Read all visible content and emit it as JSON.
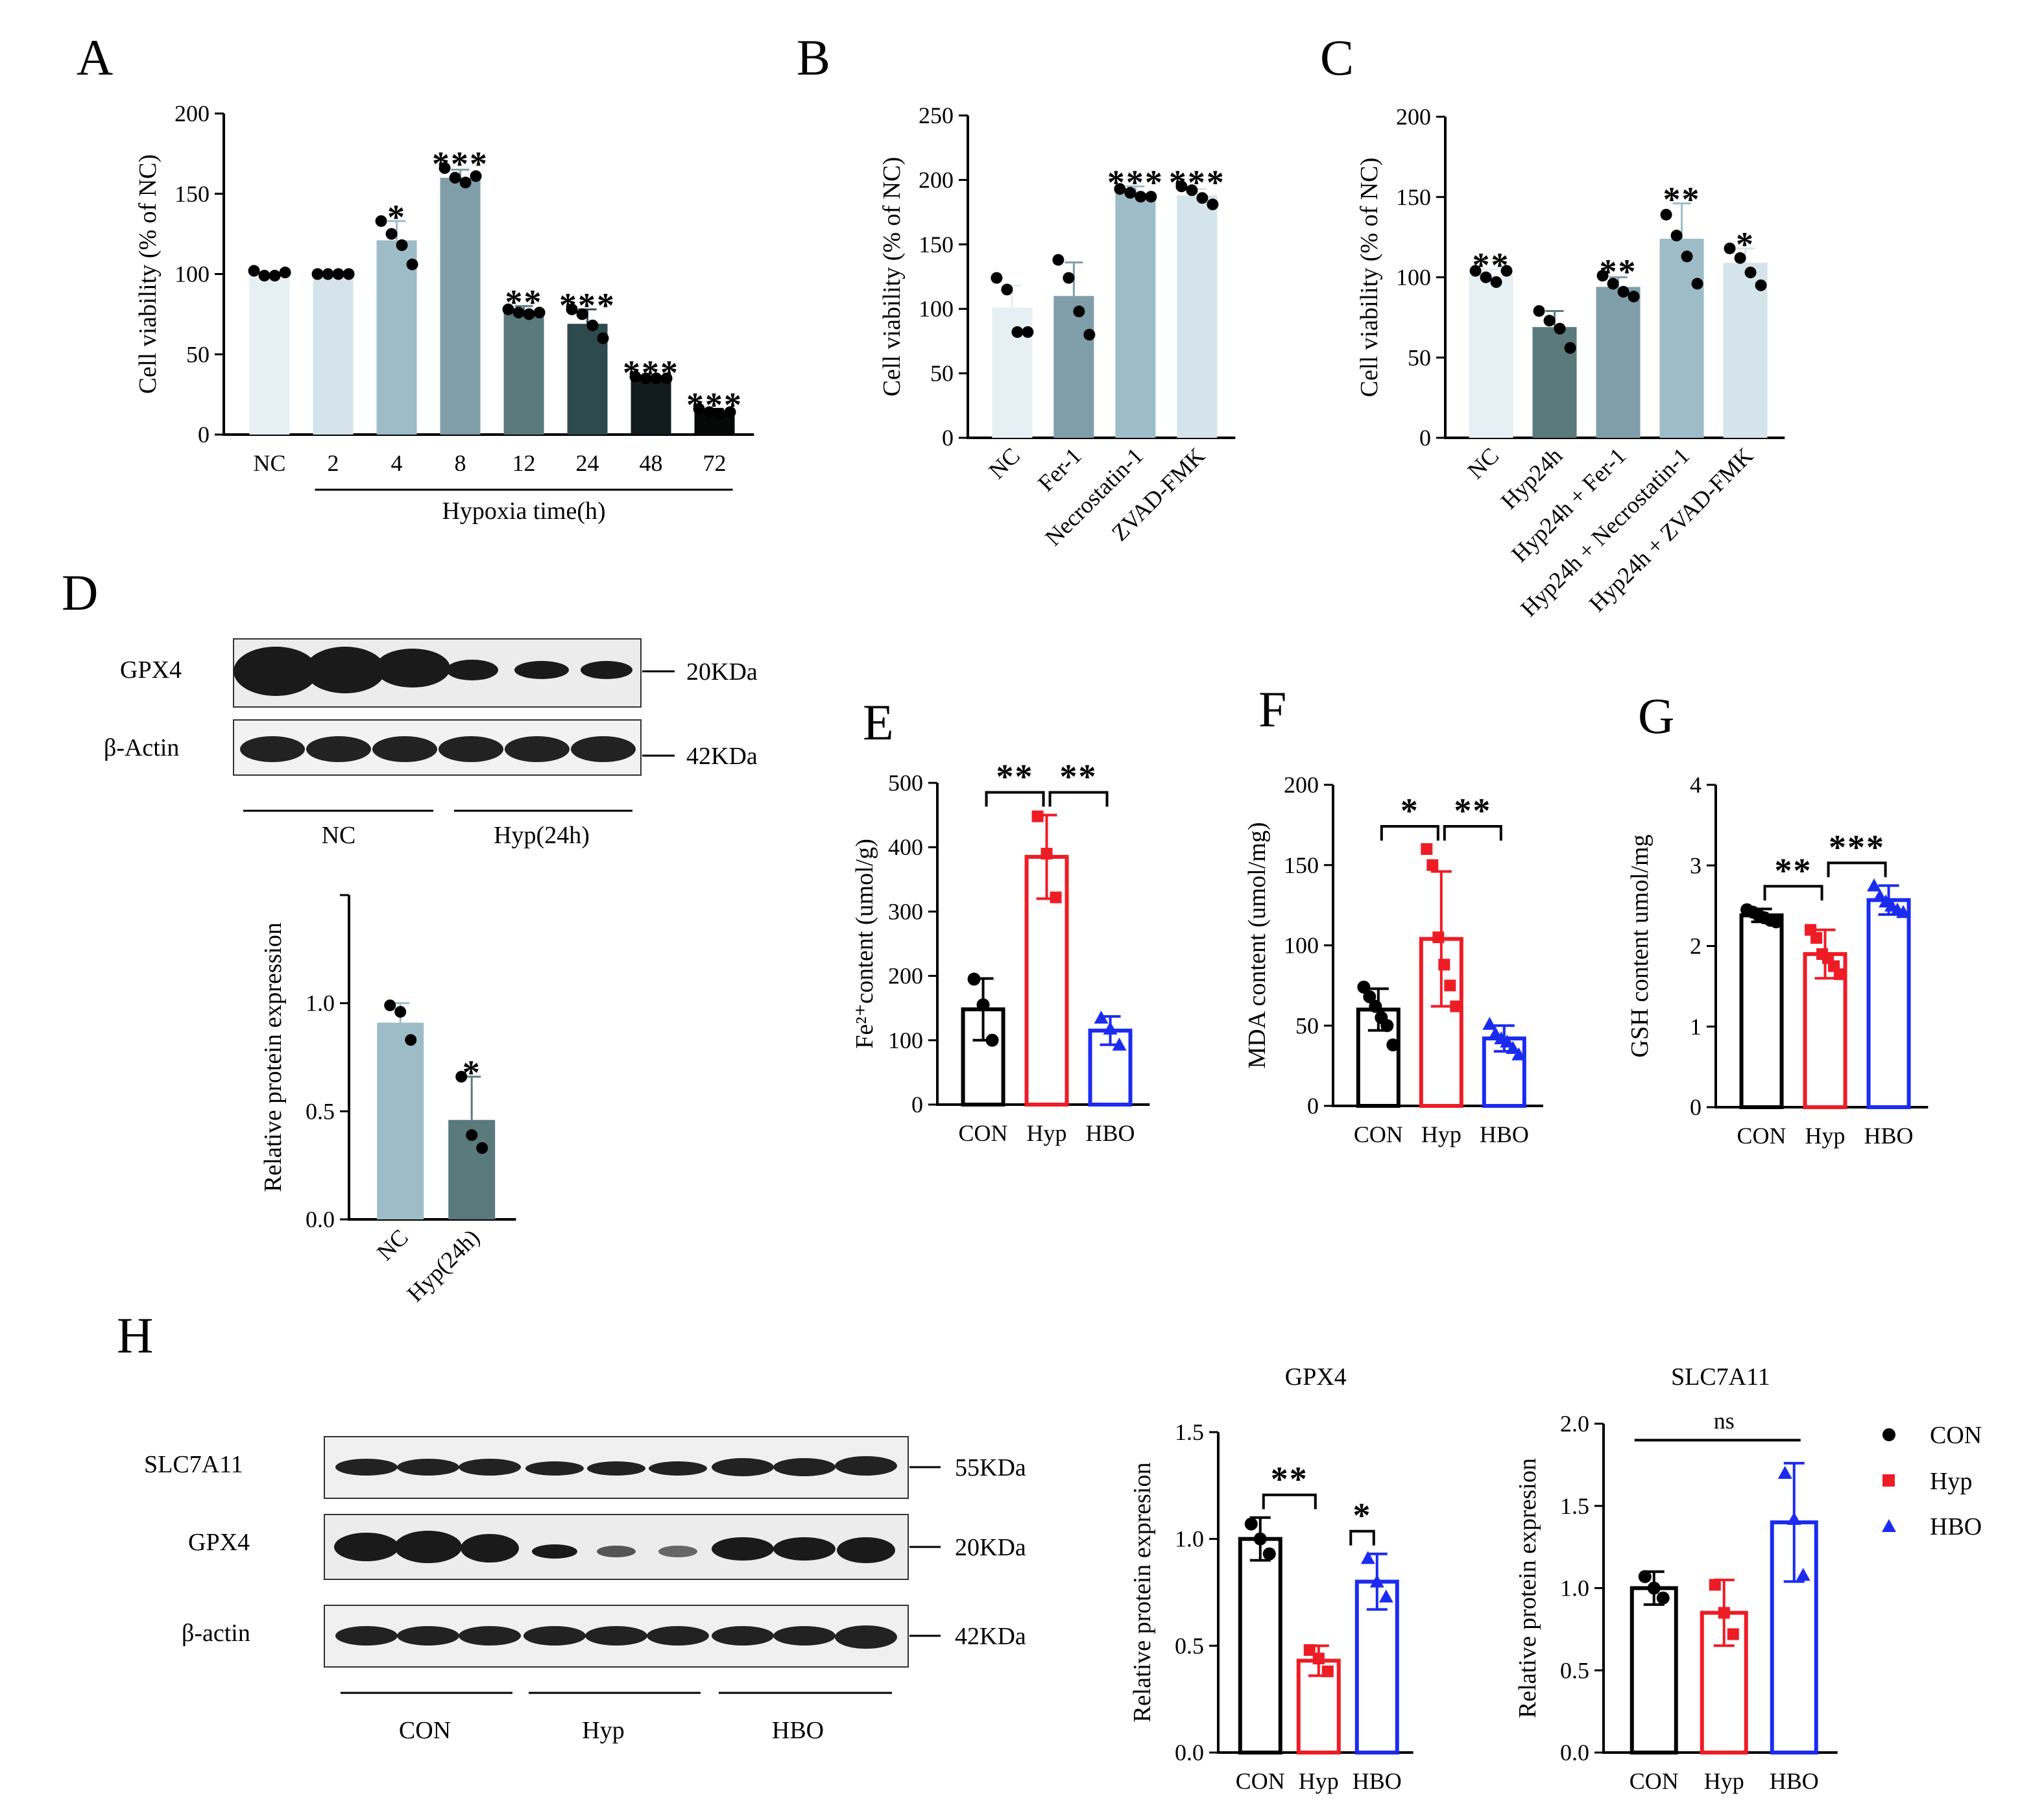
{
  "colors": {
    "NC_A": "#E6EFF4",
    "t2": "#D5E3EA",
    "t4": "#9DBCC8",
    "t8": "#7F9EA9",
    "t12": "#5A7A7C",
    "t24": "#2F4A4C",
    "t48": "#121C1E",
    "t72": "#060808",
    "CON": "#000000",
    "Hyp": "#EE1C25",
    "HBO": "#1C2BF0"
  },
  "panels": {
    "A": {
      "letter": "A"
    },
    "B": {
      "letter": "B"
    },
    "C": {
      "letter": "C"
    },
    "D": {
      "letter": "D"
    },
    "E": {
      "letter": "E"
    },
    "F": {
      "letter": "F"
    },
    "G": {
      "letter": "G"
    },
    "H": {
      "letter": "H"
    }
  },
  "blots": {
    "D": {
      "rows": [
        {
          "name": "GPX4",
          "size": "20KDa"
        },
        {
          "name": "β-Actin",
          "size": "42KDa"
        }
      ],
      "groups": [
        "NC",
        "Hyp(24h)"
      ]
    },
    "H": {
      "rows": [
        {
          "name": "SLC7A11",
          "size": "55KDa"
        },
        {
          "name": "GPX4",
          "size": "20KDa"
        },
        {
          "name": "β-actin",
          "size": "42KDa"
        }
      ],
      "groups": [
        "CON",
        "Hyp",
        "HBO"
      ]
    }
  },
  "legend": [
    {
      "label": "CON",
      "marker": "circle",
      "color": "#000000"
    },
    {
      "label": "Hyp",
      "marker": "square",
      "color": "#EE1C25"
    },
    {
      "label": "HBO",
      "marker": "triangle",
      "color": "#1C2BF0"
    }
  ],
  "chart_data": [
    {
      "id": "A",
      "type": "bar",
      "title": "",
      "ylabel": "Cell viability (% of NC)",
      "xlabel": "Hypoxia time(h)",
      "ylim": [
        0,
        200
      ],
      "yticks": [
        0,
        50,
        100,
        150,
        200
      ],
      "categories": [
        "NC",
        "2",
        "4",
        "8",
        "12",
        "24",
        "48",
        "72"
      ],
      "values": [
        100,
        100,
        121,
        160,
        76,
        69,
        35,
        14
      ],
      "errors": [
        0,
        0,
        12,
        5,
        4,
        9,
        1,
        2
      ],
      "points": [
        [
          102,
          99,
          99,
          101
        ],
        [
          100,
          100,
          100,
          100
        ],
        [
          133,
          125,
          118,
          106
        ],
        [
          166,
          160,
          157,
          161
        ],
        [
          78,
          76,
          75,
          76
        ],
        [
          78,
          75,
          68,
          60
        ],
        [
          36,
          35,
          35,
          35
        ],
        [
          16,
          14,
          13,
          14
        ]
      ],
      "significance": [
        "",
        "",
        "*",
        "***",
        "**",
        "***",
        "***",
        "***"
      ],
      "bar_colors": [
        "#E6EFF4",
        "#D5E3EA",
        "#9DBCC8",
        "#7F9EA9",
        "#5A7A7C",
        "#2F4A4C",
        "#121C1E",
        "#060808"
      ]
    },
    {
      "id": "B",
      "type": "bar",
      "title": "",
      "ylabel": "Cell viability (% of NC)",
      "ylim": [
        0,
        250
      ],
      "yticks": [
        0,
        50,
        100,
        150,
        200,
        250
      ],
      "categories": [
        "NC",
        "Fer-1",
        "Necrostatin-1",
        "ZVAD-FMK"
      ],
      "values": [
        101,
        110,
        190,
        188
      ],
      "errors": [
        17,
        26,
        5,
        5
      ],
      "points": [
        [
          124,
          115,
          82,
          82
        ],
        [
          138,
          124,
          98,
          80
        ],
        [
          193,
          190,
          187,
          187
        ],
        [
          195,
          192,
          186,
          181
        ]
      ],
      "significance": [
        "",
        "",
        "***",
        "***"
      ],
      "bar_colors": [
        "#E6EFF4",
        "#7F9EA9",
        "#9DBCC8",
        "#D5E3EA"
      ]
    },
    {
      "id": "C",
      "type": "bar",
      "title": "",
      "ylabel": "Cell viability (% of NC)",
      "ylim": [
        0,
        200
      ],
      "yticks": [
        0,
        50,
        100,
        150,
        200
      ],
      "categories": [
        "NC",
        "Hyp24h",
        "Hyp24h + Fer-1",
        "Hyp24h + Necrostatin-1",
        "Hyp24h + ZVAD-FMK"
      ],
      "values": [
        101,
        69,
        94,
        124,
        109
      ],
      "errors": [
        4,
        10,
        6,
        22,
        9
      ],
      "points": [
        [
          104,
          100,
          97,
          104
        ],
        [
          79,
          73,
          68,
          56
        ],
        [
          101,
          96,
          91,
          88
        ],
        [
          139,
          126,
          113,
          96
        ],
        [
          118,
          112,
          103,
          95
        ]
      ],
      "significance": [
        "**",
        "",
        "**",
        "**",
        "*"
      ],
      "bar_colors": [
        "#E6EFF4",
        "#5A7A7C",
        "#7F9EA9",
        "#9DBCC8",
        "#D5E3EA"
      ]
    },
    {
      "id": "D",
      "type": "bar",
      "title": "",
      "ylabel": "Relative protein expression",
      "ylim": [
        0,
        1.5
      ],
      "yticks": [
        0.0,
        0.5,
        1.0
      ],
      "categories": [
        "NC",
        "Hyp(24h)"
      ],
      "values": [
        0.91,
        0.46
      ],
      "errors": [
        0.09,
        0.2
      ],
      "points": [
        [
          0.99,
          0.96,
          0.83
        ],
        [
          0.66,
          0.39,
          0.33
        ]
      ],
      "significance": [
        "",
        "*"
      ],
      "bar_colors": [
        "#9DBCC8",
        "#5A7A7C"
      ]
    },
    {
      "id": "E",
      "type": "bar",
      "title": "",
      "ylabel": "Fe²⁺content (umol/g)",
      "ylim": [
        0,
        500
      ],
      "yticks": [
        0,
        100,
        200,
        300,
        400,
        500
      ],
      "categories": [
        "CON",
        "Hyp",
        "HBO"
      ],
      "values": [
        148,
        385,
        115
      ],
      "errors": [
        48,
        65,
        22
      ],
      "points": [
        [
          195,
          155,
          100
        ],
        [
          448,
          390,
          322
        ],
        [
          135,
          118,
          93
        ]
      ],
      "markers": [
        "circle",
        "square",
        "triangle"
      ],
      "significance_brackets": [
        {
          "from": 0,
          "to": 1,
          "label": "**"
        },
        {
          "from": 1,
          "to": 2,
          "label": "**"
        }
      ]
    },
    {
      "id": "F",
      "type": "bar",
      "title": "",
      "ylabel": "MDA content (umol/mg)",
      "ylim": [
        0,
        200
      ],
      "yticks": [
        0,
        50,
        100,
        150,
        200
      ],
      "categories": [
        "CON",
        "Hyp",
        "HBO"
      ],
      "values": [
        60,
        104,
        42
      ],
      "errors": [
        13,
        42,
        8
      ],
      "points": [
        [
          74,
          68,
          62,
          55,
          50,
          38
        ],
        [
          160,
          150,
          105,
          88,
          75,
          62
        ],
        [
          51,
          45,
          42,
          40,
          36,
          32
        ]
      ],
      "markers": [
        "circle",
        "square",
        "triangle"
      ],
      "significance_brackets": [
        {
          "from": 0,
          "to": 1,
          "label": "*"
        },
        {
          "from": 1,
          "to": 2,
          "label": "**"
        }
      ]
    },
    {
      "id": "G",
      "type": "bar",
      "title": "",
      "ylabel": "GSH content umol/mg",
      "ylim": [
        0,
        4
      ],
      "yticks": [
        0,
        1,
        2,
        3,
        4
      ],
      "categories": [
        "CON",
        "Hyp",
        "HBO"
      ],
      "values": [
        2.38,
        1.9,
        2.57
      ],
      "errors": [
        0.08,
        0.3,
        0.18
      ],
      "points": [
        [
          2.45,
          2.42,
          2.38,
          2.35,
          2.32,
          2.3
        ],
        [
          2.2,
          2.1,
          1.9,
          1.85,
          1.75,
          1.65
        ],
        [
          2.75,
          2.62,
          2.55,
          2.5,
          2.45,
          2.42
        ]
      ],
      "markers": [
        "circle",
        "square",
        "triangle"
      ],
      "significance_brackets": [
        {
          "from": 0,
          "to": 1,
          "label": "**"
        },
        {
          "from": 1,
          "to": 2,
          "label": "***"
        }
      ]
    },
    {
      "id": "H-GPX4",
      "type": "bar",
      "title": "GPX4",
      "ylabel": "Relative protein expresion",
      "ylim": [
        0,
        1.5
      ],
      "yticks": [
        0.0,
        0.5,
        1.0,
        1.5
      ],
      "categories": [
        "CON",
        "Hyp",
        "HBO"
      ],
      "values": [
        1.0,
        0.43,
        0.8
      ],
      "errors": [
        0.1,
        0.07,
        0.13
      ],
      "points": [
        [
          1.07,
          1.0,
          0.93
        ],
        [
          0.48,
          0.44,
          0.38
        ],
        [
          0.91,
          0.8,
          0.73
        ]
      ],
      "markers": [
        "circle",
        "square",
        "triangle"
      ],
      "significance_brackets": [
        {
          "from": 0,
          "to": 1,
          "label": "**"
        },
        {
          "from": 1,
          "to": 2,
          "label": "*",
          "right_half": true
        }
      ]
    },
    {
      "id": "H-SLC7A11",
      "type": "bar",
      "title": "SLC7A11",
      "ylabel": "Relative protein expresion",
      "ylim": [
        0,
        2.0
      ],
      "yticks": [
        0.0,
        0.5,
        1.0,
        1.5,
        2.0
      ],
      "categories": [
        "CON",
        "Hyp",
        "HBO"
      ],
      "values": [
        1.0,
        0.85,
        1.4
      ],
      "errors": [
        0.1,
        0.2,
        0.36
      ],
      "points": [
        [
          1.07,
          1.0,
          0.94
        ],
        [
          1.02,
          0.85,
          0.72
        ],
        [
          1.7,
          1.42,
          1.08
        ]
      ],
      "markers": [
        "circle",
        "square",
        "triangle"
      ],
      "ns_line": {
        "from": 0,
        "to": 2,
        "label": "ns"
      }
    }
  ]
}
